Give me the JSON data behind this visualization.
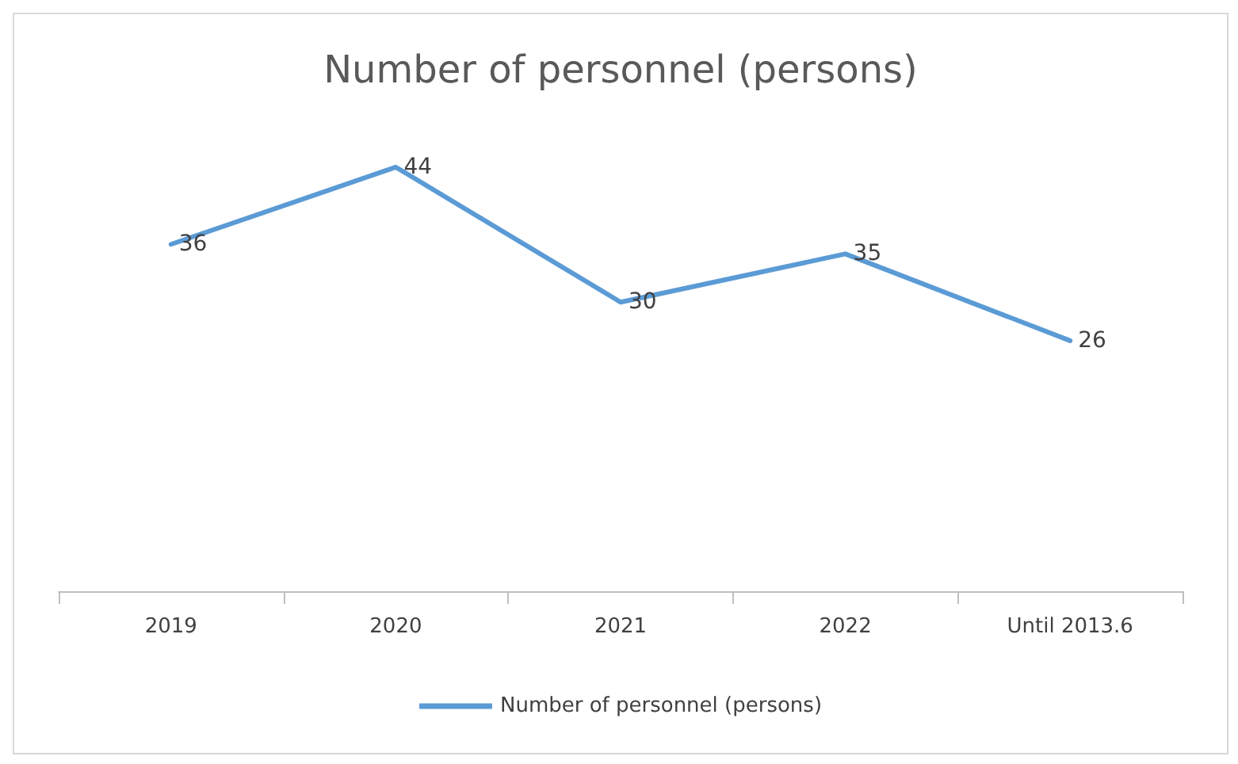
{
  "chart_data": {
    "type": "line",
    "title": "Number of personnel (persons)",
    "categories": [
      "2019",
      "2020",
      "2021",
      "2022",
      "Until 2013.6"
    ],
    "series": [
      {
        "name": "Number of personnel (persons)",
        "color": "#5b9bd5",
        "values": [
          36,
          44,
          30,
          35,
          26
        ]
      }
    ],
    "data_labels": true,
    "legend": "bottom",
    "marker": "none",
    "line_style": "solid"
  }
}
